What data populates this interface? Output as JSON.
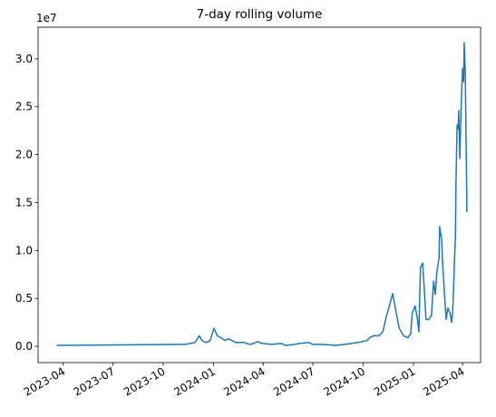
{
  "chart_data": {
    "type": "line",
    "title": "7-day rolling volume",
    "y_offset_label": "1e7",
    "x": [
      19436,
      19656,
      19672,
      19689,
      19697,
      19702,
      19710,
      19717,
      19724,
      19727,
      19730,
      19737,
      19744,
      19750,
      19757,
      19764,
      19780,
      19789,
      19797,
      19803,
      19813,
      19830,
      19847,
      19855,
      19872,
      19880,
      19897,
      19905,
      19921,
      19946,
      19963,
      19988,
      20004,
      20009,
      20016,
      20026,
      20033,
      20039,
      20046,
      20051,
      20056,
      20063,
      20071,
      20079,
      20084,
      20087,
      20092,
      20096,
      20099,
      20102,
      20106,
      20109,
      20112,
      20117,
      20122,
      20126,
      20129,
      20132,
      20136,
      20137,
      20141,
      20142,
      20146,
      20149,
      20152,
      20156,
      20159,
      20161,
      20166,
      20167,
      20169,
      20171,
      20172,
      20174,
      20176,
      20177,
      20179,
      20181,
      20182,
      20184,
      20186,
      20187
    ],
    "series": [
      {
        "name": "7-day rolling volume",
        "color": "#1f77b4",
        "values": [
          0.01,
          0.02,
          0.02,
          0.04,
          0.11,
          0.06,
          0.04,
          0.06,
          0.19,
          0.15,
          0.11,
          0.09,
          0.06,
          0.08,
          0.06,
          0.04,
          0.04,
          0.02,
          0.03,
          0.05,
          0.03,
          0.02,
          0.03,
          0.01,
          0.02,
          0.03,
          0.04,
          0.02,
          0.02,
          0.01,
          0.02,
          0.04,
          0.06,
          0.09,
          0.11,
          0.11,
          0.15,
          0.3,
          0.44,
          0.55,
          0.4,
          0.19,
          0.11,
          0.09,
          0.13,
          0.35,
          0.42,
          0.3,
          0.15,
          0.82,
          0.87,
          0.59,
          0.28,
          0.28,
          0.32,
          0.68,
          0.54,
          0.78,
          0.92,
          1.25,
          1.1,
          0.92,
          0.54,
          0.28,
          0.4,
          0.35,
          0.25,
          0.36,
          1.17,
          1.72,
          2.31,
          2.27,
          2.46,
          1.96,
          2.43,
          2.59,
          2.9,
          2.76,
          3.17,
          2.86,
          1.89,
          1.4
        ]
      }
    ],
    "xlim": [
      19402,
      20212
    ],
    "xticks": [
      {
        "value": 19448,
        "label": "2023-04"
      },
      {
        "value": 19539,
        "label": "2023-07"
      },
      {
        "value": 19631,
        "label": "2023-10"
      },
      {
        "value": 19723,
        "label": "2024-01"
      },
      {
        "value": 19814,
        "label": "2024-04"
      },
      {
        "value": 19905,
        "label": "2024-07"
      },
      {
        "value": 19997,
        "label": "2024-10"
      },
      {
        "value": 20089,
        "label": "2025-01"
      },
      {
        "value": 20179,
        "label": "2025-04"
      }
    ],
    "ylim": [
      -0.17,
      3.33
    ],
    "yticks": [
      {
        "value": 0,
        "label": "0.0"
      },
      0.5,
      {
        "value": 1,
        "label": "1.0"
      },
      1.5,
      {
        "value": 2,
        "label": "2.0"
      },
      2.5,
      {
        "value": 3,
        "label": "3.0"
      }
    ],
    "grid": false
  }
}
